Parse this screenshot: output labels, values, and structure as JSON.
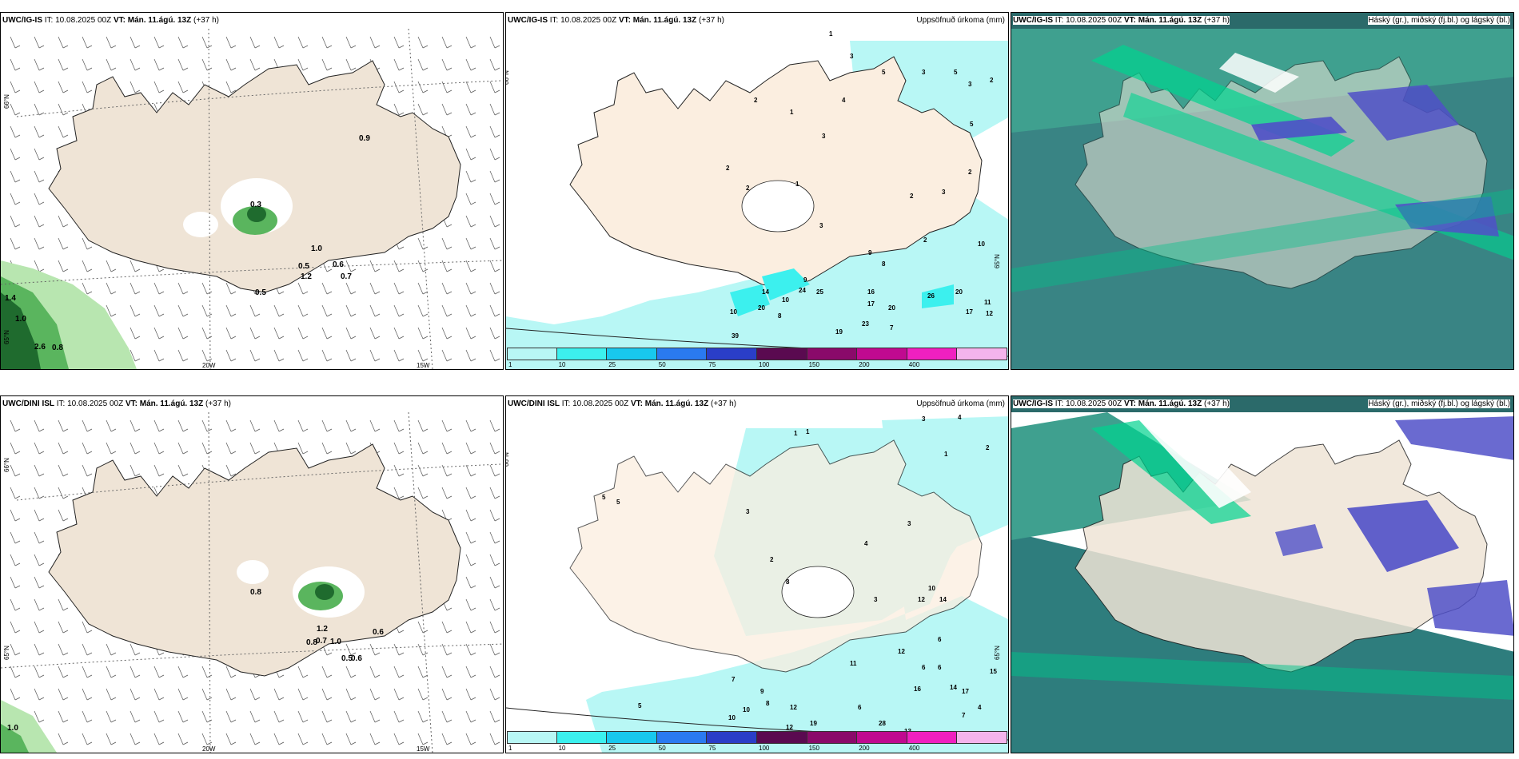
{
  "colors": {
    "land": "#efe4d6",
    "green_light": "#b8e6b0",
    "green_mid": "#5ab55e",
    "green_dark": "#1f6b2e",
    "precip_1": "#b8f7f5",
    "precip_10": "#3cf0ee",
    "cloud_high": "#2c9f8b",
    "cloud_mid": "#00c28a",
    "cloud_low": "#5050c8"
  },
  "rows": [
    {
      "model_left": "UWC/IG-IS",
      "model_right": "UWC/IG-IS",
      "it": "IT: 10.08.2025 00Z",
      "vt": "VT: Mán. 11.ágú. 13Z",
      "lead": "(+37 h)",
      "wind_labels": [
        "0.9",
        "0.3",
        "1.0",
        "0.5",
        "0.6",
        "1.2",
        "0.7",
        "0.5",
        "1.4",
        "1.0",
        "2.6",
        "0.8"
      ],
      "precip_labels": [
        "1",
        "3",
        "2",
        "1",
        "5",
        "4",
        "3",
        "3",
        "2",
        "2",
        "1",
        "3",
        "2",
        "3",
        "2",
        "2",
        "5",
        "5",
        "3",
        "2",
        "14",
        "9",
        "24",
        "25",
        "16",
        "17",
        "20",
        "26",
        "20",
        "11",
        "12",
        "10",
        "17",
        "19",
        "23",
        "7",
        "39",
        "8",
        "10",
        "20",
        "10",
        "9",
        "8"
      ]
    },
    {
      "model_left": "UWC/DINI ISL",
      "model_right": "UWC/IG-IS",
      "it": "IT: 10.08.2025 00Z",
      "vt": "VT: Mán. 11.ágú. 13Z",
      "lead": "(+37 h)",
      "wind_labels": [
        "0.8",
        "1.2",
        "0.8",
        "0.7",
        "1.0",
        "0.6",
        "0.5",
        "0.6",
        "1.0"
      ],
      "precip_labels": [
        "1",
        "1",
        "3",
        "4",
        "2",
        "1",
        "3",
        "5",
        "5",
        "3",
        "2",
        "4",
        "8",
        "12",
        "10",
        "14",
        "3",
        "6",
        "11",
        "12",
        "15",
        "16",
        "14",
        "17",
        "6",
        "6",
        "12",
        "10",
        "10",
        "7",
        "9",
        "8",
        "6",
        "13",
        "28",
        "19",
        "12",
        "13",
        "7",
        "4",
        "5"
      ]
    }
  ],
  "precip_title": "Uppsöfnuð úrkoma (mm)",
  "cloud_title": "Háský (gr.), miðský (fj.bl.) og lágský (bl.)",
  "lat_label": "66°N",
  "lat_label2": "65°N",
  "lon_labels": [
    "20W",
    "15W"
  ],
  "colorbar": {
    "ticks": [
      "1",
      "10",
      "25",
      "50",
      "75",
      "100",
      "150",
      "200",
      "400"
    ],
    "colors": [
      "#b8f7f5",
      "#3cf0ee",
      "#18c8ee",
      "#2a7af0",
      "#2a3ec8",
      "#5a0a50",
      "#8a0a6a",
      "#c00a90",
      "#f020c0",
      "#f4b4ec"
    ]
  }
}
